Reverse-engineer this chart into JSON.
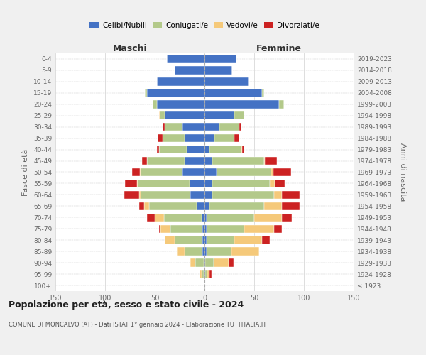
{
  "age_groups": [
    "100+",
    "95-99",
    "90-94",
    "85-89",
    "80-84",
    "75-79",
    "70-74",
    "65-69",
    "60-64",
    "55-59",
    "50-54",
    "45-49",
    "40-44",
    "35-39",
    "30-34",
    "25-29",
    "20-24",
    "15-19",
    "10-14",
    "5-9",
    "0-4"
  ],
  "birth_years": [
    "≤ 1923",
    "1924-1928",
    "1929-1933",
    "1934-1938",
    "1939-1943",
    "1944-1948",
    "1949-1953",
    "1954-1958",
    "1959-1963",
    "1964-1968",
    "1969-1973",
    "1974-1978",
    "1979-1983",
    "1984-1988",
    "1989-1993",
    "1994-1998",
    "1999-2003",
    "2004-2008",
    "2009-2013",
    "2014-2018",
    "2019-2023"
  ],
  "colors": {
    "celibi": "#4472c4",
    "coniugati": "#b3c98a",
    "vedovi": "#f5c97a",
    "divorziati": "#cc2222"
  },
  "m_celibi": [
    0,
    1,
    1,
    2,
    2,
    2,
    3,
    8,
    14,
    15,
    22,
    20,
    18,
    20,
    22,
    40,
    48,
    58,
    48,
    30,
    38
  ],
  "m_coniugati": [
    0,
    2,
    8,
    18,
    28,
    32,
    38,
    48,
    50,
    52,
    42,
    38,
    28,
    22,
    18,
    5,
    4,
    2,
    0,
    0,
    0
  ],
  "m_vedovi": [
    0,
    2,
    5,
    8,
    10,
    10,
    9,
    5,
    2,
    1,
    1,
    0,
    0,
    0,
    0,
    1,
    0,
    0,
    0,
    0,
    0
  ],
  "m_divorziati": [
    0,
    0,
    0,
    0,
    0,
    2,
    8,
    5,
    15,
    12,
    8,
    5,
    2,
    5,
    2,
    0,
    0,
    0,
    0,
    0,
    0
  ],
  "f_nubili": [
    0,
    1,
    1,
    2,
    2,
    2,
    2,
    5,
    8,
    8,
    12,
    8,
    5,
    10,
    15,
    30,
    75,
    58,
    45,
    28,
    32
  ],
  "f_coniugate": [
    0,
    2,
    8,
    25,
    28,
    38,
    48,
    55,
    62,
    58,
    55,
    52,
    32,
    20,
    20,
    10,
    5,
    2,
    0,
    0,
    0
  ],
  "f_vedove": [
    0,
    2,
    15,
    28,
    28,
    30,
    28,
    18,
    8,
    5,
    2,
    1,
    1,
    0,
    0,
    0,
    0,
    0,
    0,
    0,
    0
  ],
  "f_divorziate": [
    0,
    2,
    5,
    0,
    8,
    8,
    10,
    18,
    18,
    10,
    18,
    12,
    2,
    5,
    2,
    0,
    0,
    0,
    0,
    0,
    0
  ],
  "xlim": 150,
  "title": "Popolazione per età, sesso e stato civile - 2024",
  "subtitle": "COMUNE DI MONCALVO (AT) - Dati ISTAT 1° gennaio 2024 - Elaborazione TUTTITALIA.IT",
  "label_maschi": "Maschi",
  "label_femmine": "Femmine",
  "ylabel_left": "Fasce di età",
  "ylabel_right": "Anni di nascita",
  "bg_color": "#f0f0f0",
  "plot_bg_color": "#ffffff",
  "legend_labels": [
    "Celibi/Nubili",
    "Coniugati/e",
    "Vedovi/e",
    "Divorziati/e"
  ]
}
